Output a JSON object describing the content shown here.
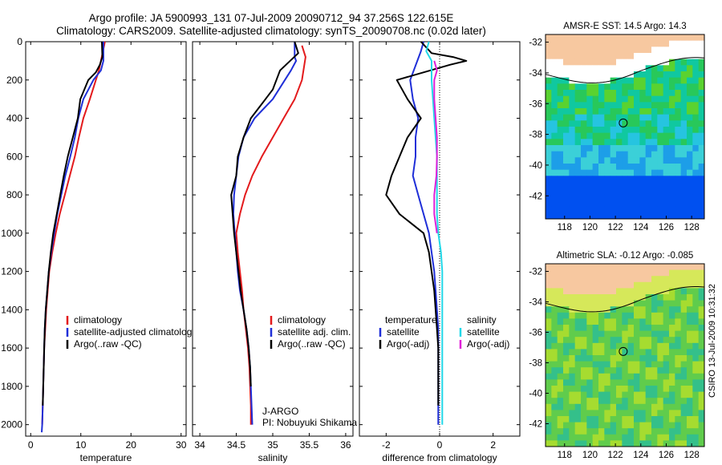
{
  "header": {
    "line1": "Argo profile: JA 5900993_131 07-Jul-2009 20090712_94 37.256S 122.615E",
    "line2": "Climatology: CARS2009. Satellite-adjusted climatology: synTS_20090708.nc (0.02d later)"
  },
  "side_label": "CSIRO 13-Jul-2009 10:31:32",
  "colors": {
    "climatology": "#e31a1c",
    "satellite": "#1f2fd8",
    "argo": "#000000",
    "sat_salinity": "#22d8e8",
    "argo_adj_salinity": "#e020d8",
    "land": "#f7c8a0"
  },
  "chart_data": [
    {
      "type": "line",
      "id": "temperature",
      "xlabel": "temperature",
      "xlim": [
        -1,
        31
      ],
      "ylim": [
        2060,
        0
      ],
      "xticks": [
        0,
        10,
        20,
        30
      ],
      "yticks": [
        0,
        200,
        400,
        600,
        800,
        1000,
        1200,
        1400,
        1600,
        1800,
        2000
      ],
      "legend": [
        "climatology",
        "satellite-adjusted climatology",
        "Argo(..raw -QC)"
      ],
      "series": [
        {
          "name": "climatology",
          "color": "#e31a1c",
          "points": [
            [
              14.8,
              0
            ],
            [
              14.4,
              50
            ],
            [
              14.0,
              100
            ],
            [
              13.6,
              150
            ],
            [
              13.0,
              200
            ],
            [
              11.8,
              300
            ],
            [
              10.5,
              400
            ],
            [
              9.6,
              500
            ],
            [
              8.8,
              600
            ],
            [
              7.8,
              700
            ],
            [
              6.8,
              800
            ],
            [
              5.8,
              900
            ],
            [
              5.0,
              1000
            ],
            [
              4.3,
              1100
            ],
            [
              3.7,
              1200
            ],
            [
              3.4,
              1300
            ],
            [
              3.1,
              1400
            ],
            [
              2.9,
              1500
            ],
            [
              2.7,
              1600
            ],
            [
              2.6,
              1700
            ],
            [
              2.5,
              1800
            ],
            [
              2.4,
              1900
            ],
            [
              2.3,
              2000
            ]
          ]
        },
        {
          "name": "satellite-adjusted climatology",
          "color": "#1f2fd8",
          "points": [
            [
              14.5,
              0
            ],
            [
              14.5,
              100
            ],
            [
              14.0,
              150
            ],
            [
              12.5,
              200
            ],
            [
              10.5,
              300
            ],
            [
              9.5,
              400
            ],
            [
              8.8,
              500
            ],
            [
              7.9,
              600
            ],
            [
              6.9,
              700
            ],
            [
              6.1,
              800
            ],
            [
              5.3,
              900
            ],
            [
              4.7,
              1000
            ],
            [
              4.1,
              1100
            ],
            [
              3.6,
              1200
            ],
            [
              3.3,
              1300
            ],
            [
              3.0,
              1400
            ],
            [
              2.8,
              1500
            ],
            [
              2.7,
              1600
            ],
            [
              2.6,
              1700
            ],
            [
              2.5,
              1800
            ],
            [
              2.4,
              1900
            ],
            [
              2.3,
              2000
            ],
            [
              2.2,
              2040
            ]
          ]
        },
        {
          "name": "Argo(..raw -QC)",
          "color": "#000000",
          "points": [
            [
              14.2,
              0
            ],
            [
              14.3,
              80
            ],
            [
              13.8,
              120
            ],
            [
              13.0,
              160
            ],
            [
              11.5,
              200
            ],
            [
              9.9,
              300
            ],
            [
              9.4,
              400
            ],
            [
              8.4,
              500
            ],
            [
              7.4,
              600
            ],
            [
              6.6,
              700
            ],
            [
              5.9,
              800
            ],
            [
              5.2,
              900
            ],
            [
              4.5,
              1000
            ],
            [
              4.0,
              1100
            ],
            [
              3.6,
              1200
            ],
            [
              3.3,
              1300
            ],
            [
              3.0,
              1400
            ],
            [
              2.8,
              1500
            ],
            [
              2.7,
              1600
            ],
            [
              2.6,
              1700
            ],
            [
              2.5,
              1800
            ],
            [
              2.4,
              1900
            ]
          ]
        }
      ]
    },
    {
      "type": "line",
      "id": "salinity",
      "xlabel": "salinity",
      "xlim": [
        33.9,
        36.1
      ],
      "ylim": [
        2060,
        0
      ],
      "xticks": [
        34,
        34.5,
        35,
        35.5,
        36
      ],
      "yticks": [
        0,
        200,
        400,
        600,
        800,
        1000,
        1200,
        1400,
        1600,
        1800,
        2000
      ],
      "legend": [
        "climatology",
        "satellite adj. clim.",
        "Argo(..raw -QC)"
      ],
      "annotation": [
        "J-ARGO",
        "PI: Nobuyuki Shikama"
      ],
      "series": [
        {
          "name": "climatology",
          "color": "#e31a1c",
          "points": [
            [
              35.4,
              20
            ],
            [
              35.45,
              80
            ],
            [
              35.4,
              200
            ],
            [
              35.3,
              300
            ],
            [
              35.15,
              400
            ],
            [
              35.0,
              500
            ],
            [
              34.85,
              600
            ],
            [
              34.72,
              700
            ],
            [
              34.62,
              800
            ],
            [
              34.55,
              900
            ],
            [
              34.5,
              1000
            ],
            [
              34.52,
              1100
            ],
            [
              34.55,
              1200
            ],
            [
              34.58,
              1300
            ],
            [
              34.6,
              1400
            ],
            [
              34.63,
              1500
            ],
            [
              34.66,
              1600
            ],
            [
              34.68,
              1700
            ],
            [
              34.69,
              1800
            ],
            [
              34.7,
              1900
            ],
            [
              34.7,
              2000
            ]
          ]
        },
        {
          "name": "satellite adj. clim.",
          "color": "#1f2fd8",
          "points": [
            [
              35.3,
              0
            ],
            [
              35.3,
              80
            ],
            [
              35.32,
              100
            ],
            [
              35.25,
              150
            ],
            [
              35.0,
              300
            ],
            [
              34.75,
              400
            ],
            [
              34.6,
              500
            ],
            [
              34.53,
              600
            ],
            [
              34.5,
              700
            ],
            [
              34.47,
              800
            ],
            [
              34.46,
              900
            ],
            [
              34.48,
              1000
            ],
            [
              34.5,
              1100
            ],
            [
              34.52,
              1200
            ],
            [
              34.55,
              1300
            ],
            [
              34.6,
              1400
            ],
            [
              34.64,
              1500
            ],
            [
              34.67,
              1600
            ],
            [
              34.69,
              1700
            ],
            [
              34.7,
              1800
            ],
            [
              34.71,
              1900
            ],
            [
              34.72,
              2000
            ]
          ]
        },
        {
          "name": "Argo(..raw -QC)",
          "color": "#000000",
          "points": [
            [
              35.3,
              0
            ],
            [
              35.35,
              60
            ],
            [
              35.1,
              150
            ],
            [
              35.0,
              250
            ],
            [
              34.9,
              300
            ],
            [
              34.7,
              400
            ],
            [
              34.6,
              500
            ],
            [
              34.52,
              600
            ],
            [
              34.5,
              700
            ],
            [
              34.43,
              800
            ],
            [
              34.45,
              900
            ],
            [
              34.47,
              1000
            ],
            [
              34.5,
              1100
            ],
            [
              34.53,
              1200
            ],
            [
              34.56,
              1300
            ],
            [
              34.6,
              1400
            ],
            [
              34.64,
              1500
            ],
            [
              34.67,
              1600
            ],
            [
              34.69,
              1700
            ],
            [
              34.7,
              1800
            ]
          ]
        }
      ]
    },
    {
      "type": "line",
      "id": "difference",
      "xlabel": "difference from climatology",
      "xlim": [
        -3,
        3
      ],
      "ylim": [
        2060,
        0
      ],
      "xticks": [
        -2,
        0,
        2
      ],
      "yticks": [
        0,
        200,
        400,
        600,
        800,
        1000,
        1200,
        1400,
        1600,
        1800,
        2000
      ],
      "zero_line": 0,
      "legend_left_title": "temperature",
      "legend_left": [
        "satellite",
        "Argo(-adj)"
      ],
      "legend_right_title": "salinity",
      "legend_right": [
        "satellite",
        "Argo(-adj)"
      ],
      "series": [
        {
          "name": "temperature satellite",
          "color": "#1f2fd8",
          "points": [
            [
              -0.6,
              0
            ],
            [
              -0.7,
              50
            ],
            [
              -1.1,
              200
            ],
            [
              -1.0,
              300
            ],
            [
              -0.8,
              400
            ],
            [
              -0.9,
              500
            ],
            [
              -0.9,
              600
            ],
            [
              -1.0,
              700
            ],
            [
              -0.8,
              800
            ],
            [
              -0.6,
              900
            ],
            [
              -0.4,
              1000
            ],
            [
              -0.3,
              1100
            ],
            [
              -0.2,
              1200
            ],
            [
              -0.15,
              1300
            ],
            [
              -0.1,
              1400
            ],
            [
              -0.05,
              1500
            ],
            [
              -0.05,
              1600
            ],
            [
              -0.05,
              1700
            ],
            [
              -0.05,
              1800
            ],
            [
              -0.05,
              1900
            ],
            [
              -0.05,
              2000
            ]
          ]
        },
        {
          "name": "temperature Argo(-adj)",
          "color": "#000000",
          "points": [
            [
              -0.7,
              0
            ],
            [
              -0.3,
              60
            ],
            [
              0.5,
              80
            ],
            [
              1.0,
              100
            ],
            [
              0.4,
              120
            ],
            [
              -1.6,
              200
            ],
            [
              -1.2,
              300
            ],
            [
              -0.7,
              400
            ],
            [
              -1.2,
              500
            ],
            [
              -1.8,
              700
            ],
            [
              -2.0,
              800
            ],
            [
              -1.5,
              900
            ],
            [
              -0.6,
              1000
            ],
            [
              -0.4,
              1100
            ],
            [
              -0.3,
              1200
            ],
            [
              -0.2,
              1300
            ],
            [
              -0.15,
              1400
            ],
            [
              -0.1,
              1500
            ],
            [
              -0.05,
              1600
            ],
            [
              -0.05,
              1700
            ],
            [
              -0.05,
              1800
            ],
            [
              -0.05,
              1900
            ]
          ]
        },
        {
          "name": "salinity satellite",
          "color": "#22d8e8",
          "points": [
            [
              -0.4,
              0
            ],
            [
              -0.5,
              50
            ],
            [
              -0.3,
              100
            ],
            [
              -0.3,
              200
            ],
            [
              -0.2,
              400
            ],
            [
              -0.1,
              600
            ],
            [
              -0.1,
              700
            ],
            [
              -0.1,
              800
            ],
            [
              -0.1,
              900
            ],
            [
              -0.05,
              1000
            ],
            [
              0.05,
              1100
            ],
            [
              0.1,
              1200
            ],
            [
              0.1,
              1300
            ],
            [
              0.1,
              1400
            ],
            [
              0.1,
              1500
            ],
            [
              0.1,
              1600
            ],
            [
              0.1,
              1700
            ],
            [
              0.1,
              1800
            ],
            [
              0.1,
              1900
            ],
            [
              0.1,
              2000
            ]
          ]
        },
        {
          "name": "salinity Argo(-adj)",
          "color": "#e020d8",
          "points": [
            [
              -0.2,
              100
            ],
            [
              -0.1,
              150
            ],
            [
              -0.2,
              200
            ],
            [
              -0.2,
              300
            ],
            [
              -0.15,
              400
            ],
            [
              -0.1,
              500
            ],
            [
              -0.1,
              600
            ],
            [
              -0.12,
              700
            ],
            [
              -0.2,
              800
            ],
            [
              -0.2,
              900
            ],
            [
              -0.1,
              1000
            ]
          ]
        }
      ]
    },
    {
      "type": "heatmap",
      "id": "sst_map",
      "title": "AMSR-E SST: 14.5 Argo: 14.3",
      "xlim": [
        116.5,
        129
      ],
      "ylim": [
        -43.5,
        -31.5
      ],
      "xticks": [
        118,
        120,
        122,
        124,
        126,
        128
      ],
      "yticks": [
        -32,
        -34,
        -36,
        -38,
        -40,
        -42
      ],
      "marker": {
        "lon": 122.615,
        "lat": -37.256
      }
    },
    {
      "type": "heatmap",
      "id": "sla_map",
      "title": "Altimetric SLA: -0.12 Argo: -0.085",
      "xlim": [
        116.5,
        129
      ],
      "ylim": [
        -43.5,
        -31.5
      ],
      "xticks": [
        118,
        120,
        122,
        124,
        126,
        128
      ],
      "yticks": [
        -32,
        -34,
        -36,
        -38,
        -40,
        -42
      ],
      "marker": {
        "lon": 122.615,
        "lat": -37.256
      }
    }
  ]
}
